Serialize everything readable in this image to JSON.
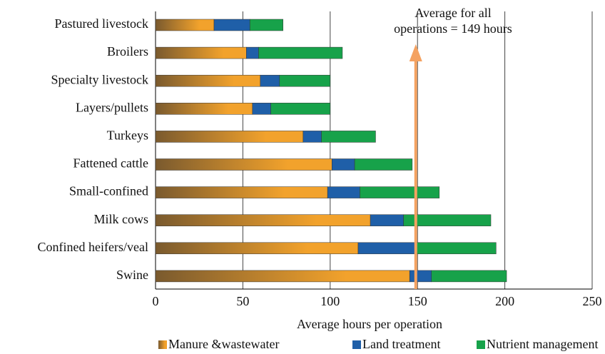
{
  "chart_data": {
    "type": "stacked-barh",
    "xlabel": "Average hours per operation",
    "categories": [
      "Pastured livestock",
      "Broilers",
      "Specialty livestock",
      "Layers/pullets",
      "Turkeys",
      "Fattened cattle",
      "Small-confined",
      "Milk cows",
      "Confined heifers/veal",
      "Swine"
    ],
    "series": [
      {
        "name": "Manure &wastewater",
        "color": "#f2a22c",
        "values": [
          33.5,
          52,
          60,
          55.5,
          84.5,
          101,
          98.5,
          123,
          116,
          145.5
        ]
      },
      {
        "name": "Land treatment",
        "color": "#1f5fa8",
        "values": [
          20.5,
          7,
          11,
          10.5,
          10.5,
          13,
          18.5,
          19,
          33.5,
          12.5
        ]
      },
      {
        "name": "Nutrient management",
        "color": "#17a24a",
        "values": [
          19,
          48,
          29,
          34,
          31,
          33,
          45.5,
          50,
          45.5,
          43
        ]
      }
    ],
    "xlim": [
      0,
      250
    ],
    "xticks": [
      0,
      50,
      100,
      150,
      200,
      250
    ],
    "grid": true,
    "annotation": {
      "text": [
        "Average for all",
        "operations = 149 hours"
      ],
      "x": 149,
      "color": "#f4a261"
    }
  }
}
